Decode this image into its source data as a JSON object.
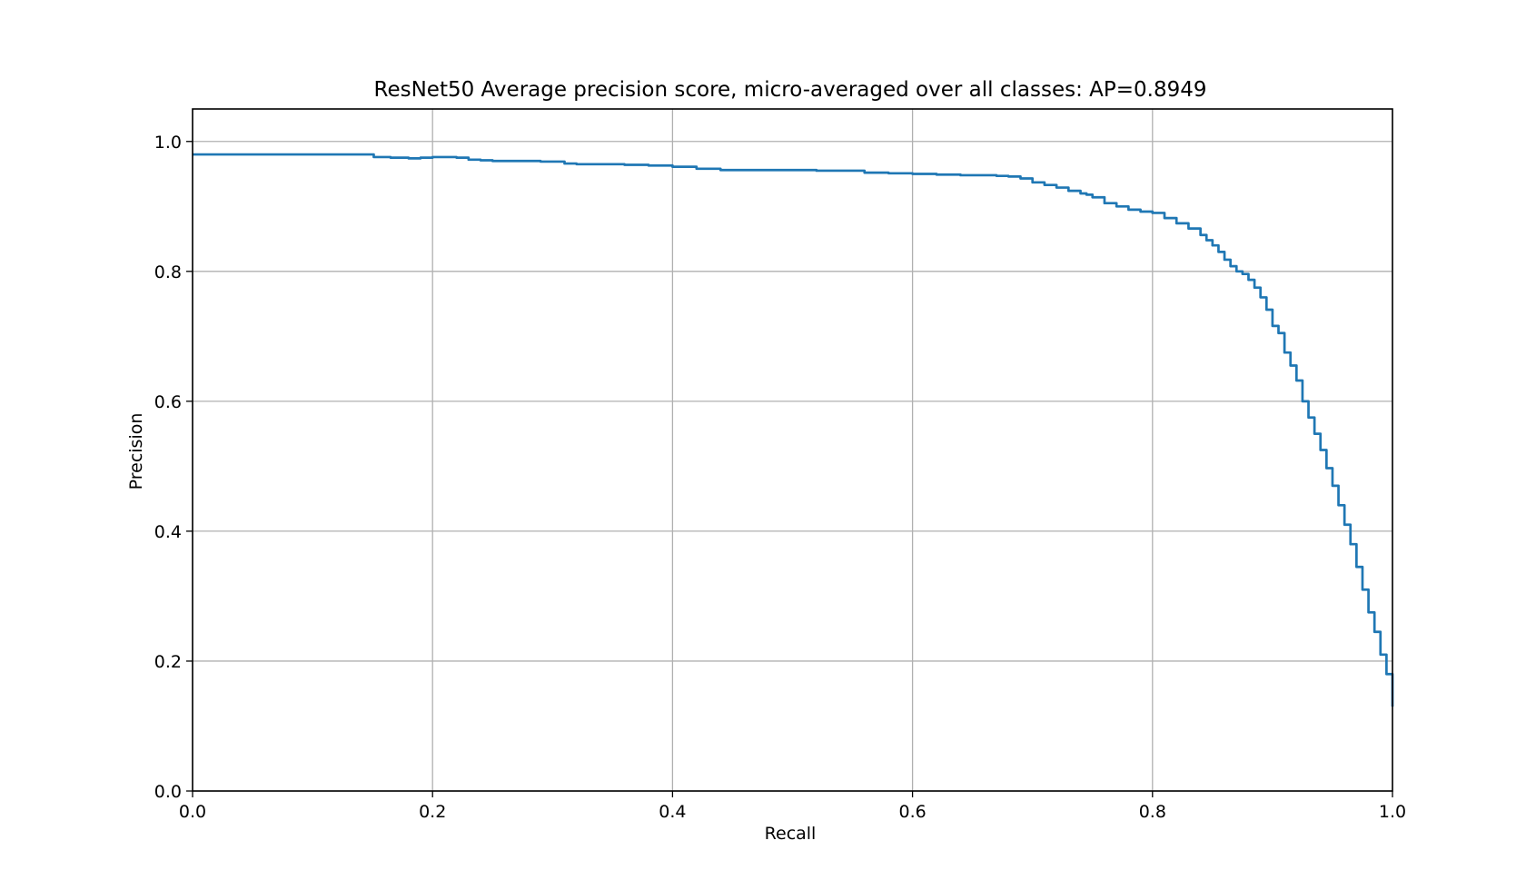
{
  "chart_data": {
    "type": "line",
    "title": "ResNet50 Average precision score, micro-averaged over all classes: AP=0.8949",
    "xlabel": "Recall",
    "ylabel": "Precision",
    "xlim": [
      0.0,
      1.0
    ],
    "ylim": [
      0.0,
      1.05
    ],
    "xticks": [
      "0.0",
      "0.2",
      "0.4",
      "0.6",
      "0.8",
      "1.0"
    ],
    "yticks": [
      "0.0",
      "0.2",
      "0.4",
      "0.6",
      "0.8",
      "1.0"
    ],
    "grid": true,
    "legend": "none",
    "line_color": "#1f77b4",
    "step": true,
    "series": [
      {
        "x": [
          0.0,
          0.15,
          0.151,
          0.165,
          0.18,
          0.19,
          0.2,
          0.21,
          0.22,
          0.23,
          0.24,
          0.25,
          0.27,
          0.29,
          0.3,
          0.31,
          0.32,
          0.34,
          0.36,
          0.38,
          0.4,
          0.42,
          0.44,
          0.46,
          0.48,
          0.5,
          0.52,
          0.54,
          0.55,
          0.56,
          0.58,
          0.6,
          0.62,
          0.63,
          0.64,
          0.66,
          0.67,
          0.68,
          0.69,
          0.7,
          0.71,
          0.72,
          0.73,
          0.74,
          0.745,
          0.75,
          0.76,
          0.77,
          0.78,
          0.79,
          0.8,
          0.81,
          0.82,
          0.83,
          0.84,
          0.845,
          0.85,
          0.855,
          0.86,
          0.865,
          0.87,
          0.875,
          0.88,
          0.885,
          0.89,
          0.895,
          0.9,
          0.905,
          0.91,
          0.915,
          0.92,
          0.925,
          0.93,
          0.935,
          0.94,
          0.945,
          0.95,
          0.955,
          0.96,
          0.965,
          0.97,
          0.975,
          0.98,
          0.985,
          0.99,
          0.995,
          1.0
        ],
        "y": [
          0.98,
          0.98,
          0.976,
          0.975,
          0.974,
          0.975,
          0.976,
          0.976,
          0.975,
          0.972,
          0.971,
          0.97,
          0.97,
          0.969,
          0.969,
          0.966,
          0.965,
          0.965,
          0.964,
          0.963,
          0.961,
          0.958,
          0.956,
          0.956,
          0.956,
          0.956,
          0.955,
          0.955,
          0.955,
          0.952,
          0.951,
          0.95,
          0.949,
          0.949,
          0.948,
          0.948,
          0.947,
          0.946,
          0.943,
          0.937,
          0.933,
          0.929,
          0.924,
          0.92,
          0.918,
          0.914,
          0.905,
          0.9,
          0.895,
          0.892,
          0.89,
          0.882,
          0.874,
          0.866,
          0.856,
          0.848,
          0.84,
          0.83,
          0.818,
          0.808,
          0.8,
          0.796,
          0.787,
          0.775,
          0.76,
          0.741,
          0.716,
          0.705,
          0.675,
          0.655,
          0.632,
          0.6,
          0.575,
          0.55,
          0.525,
          0.497,
          0.47,
          0.44,
          0.41,
          0.38,
          0.345,
          0.31,
          0.275,
          0.245,
          0.21,
          0.18,
          0.13
        ]
      }
    ]
  }
}
